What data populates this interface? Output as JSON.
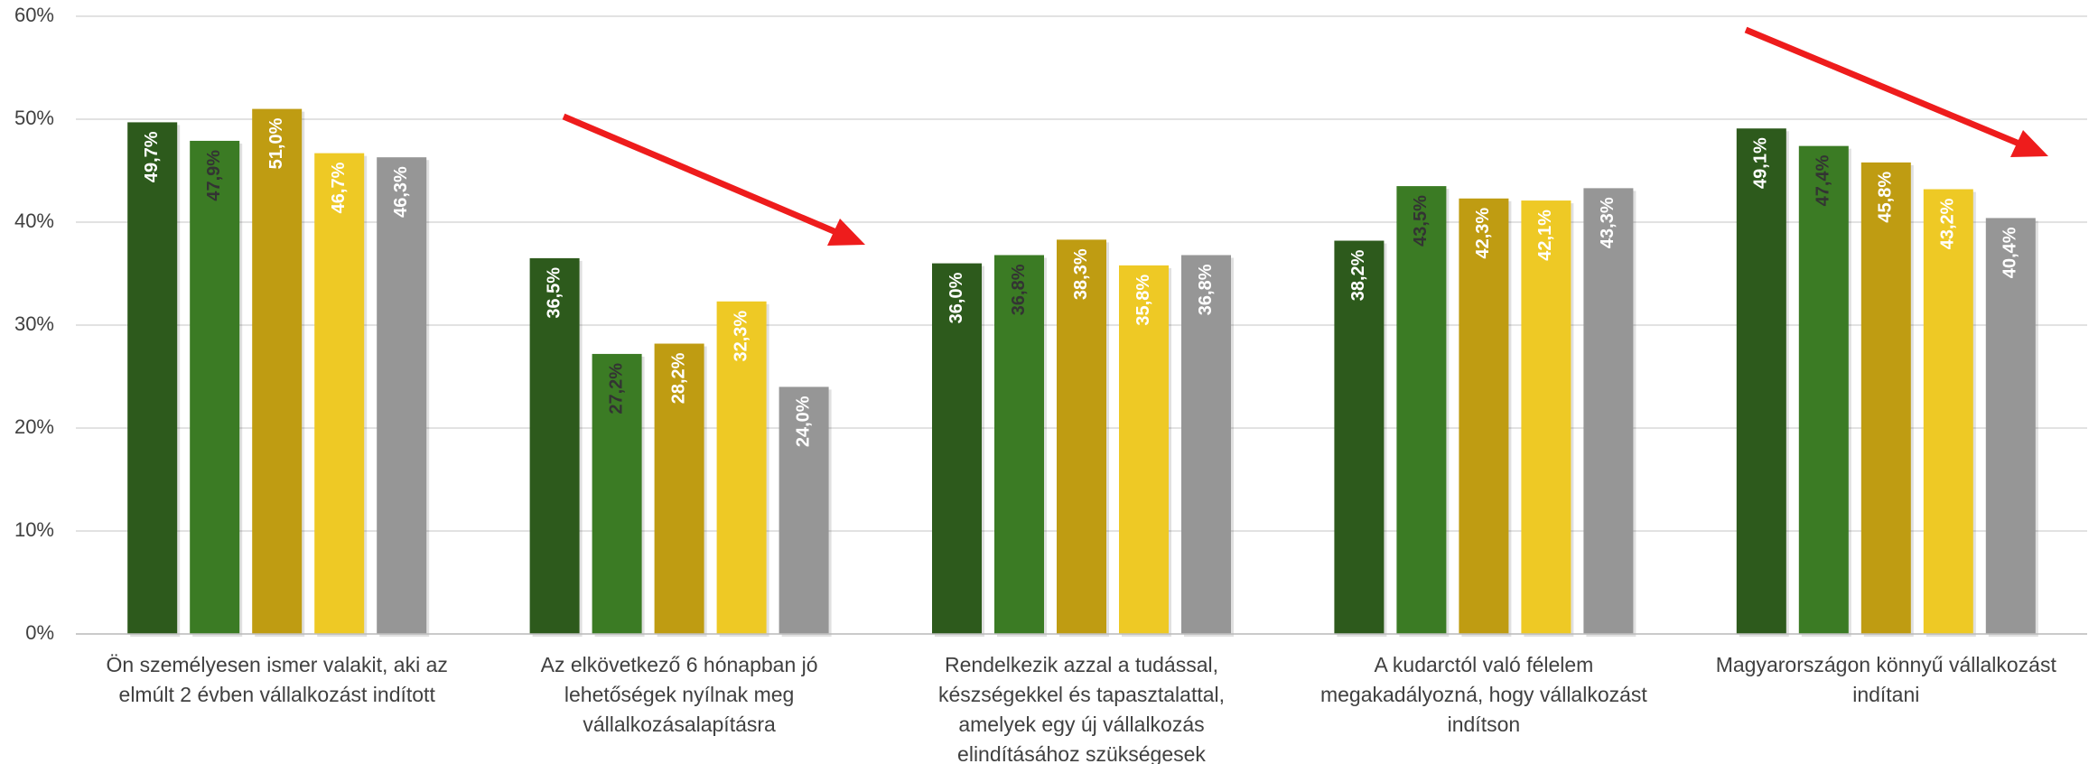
{
  "chart_data": {
    "type": "bar",
    "categories": [
      "Ön személyesen ismer valakit, aki az\nelmúlt 2 évben vállalkozást indított",
      "Az elkövetkező 6 hónapban jó\nlehetőségek nyílnak meg\nvállalkozásalapításra",
      "Rendelkezik azzal a tudással,\nkészségekkel és tapasztalattal,\namelyek egy új vállalkozás\nelindításához szükségesek",
      "A kudarctól való félelem\nmegakadályozná, hogy vállalkozást\nindítson",
      "Magyarországon könnyű vállalkozást\nindítani"
    ],
    "series": [
      {
        "color": "#2d5a1c",
        "values": [
          49.7,
          36.5,
          36.0,
          38.2,
          49.1
        ],
        "value_labels": [
          "49,7%",
          "36,5%",
          "36,0%",
          "38,2%",
          "49,1%"
        ]
      },
      {
        "color": "#3b7b24",
        "values": [
          47.9,
          27.2,
          36.8,
          43.5,
          47.4
        ],
        "value_labels": [
          "47,9%",
          "27,2%",
          "36,8%",
          "43,5%",
          "47,4%"
        ]
      },
      {
        "color": "#bf9c12",
        "values": [
          51.0,
          28.2,
          38.3,
          42.3,
          45.8
        ],
        "value_labels": [
          "51,0%",
          "28,2%",
          "38,3%",
          "42,3%",
          "45,8%"
        ]
      },
      {
        "color": "#eec925",
        "values": [
          46.7,
          32.3,
          35.8,
          42.1,
          43.2
        ],
        "value_labels": [
          "46,7%",
          "32,3%",
          "35,8%",
          "42,1%",
          "43,2%"
        ]
      },
      {
        "color": "#969696",
        "values": [
          46.3,
          24.0,
          36.8,
          43.3,
          40.4
        ],
        "value_labels": [
          "46,3%",
          "24,0%",
          "36,8%",
          "43,3%",
          "40,4%"
        ]
      }
    ],
    "ylim": [
      0,
      60
    ],
    "yticks": [
      {
        "value": 0,
        "label": "0%"
      },
      {
        "value": 10,
        "label": "10%"
      },
      {
        "value": 20,
        "label": "20%"
      },
      {
        "value": 30,
        "label": "30%"
      },
      {
        "value": 40,
        "label": "40%"
      },
      {
        "value": 50,
        "label": "50%"
      },
      {
        "value": 60,
        "label": "60%"
      }
    ],
    "grid": true
  }
}
